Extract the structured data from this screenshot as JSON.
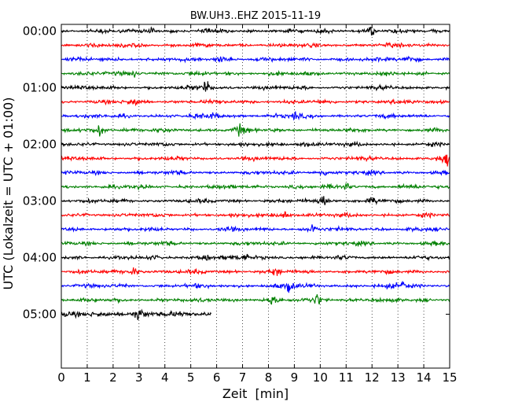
{
  "chart_data": {
    "type": "line",
    "title": "BW.UH3..EHZ 2015-11-19",
    "xlabel": "Zeit  [min]",
    "ylabel": "UTC (Lokalzeit = UTC + 01:00)",
    "xlim": [
      0,
      15
    ],
    "x_ticks": [
      "0",
      "1",
      "2",
      "3",
      "4",
      "5",
      "6",
      "7",
      "8",
      "9",
      "10",
      "11",
      "12",
      "13",
      "14",
      "15"
    ],
    "y_ticks": [
      "00:00",
      "01:00",
      "02:00",
      "03:00",
      "04:00",
      "05:00"
    ],
    "grid": "vertical dotted",
    "colors": [
      "#000000",
      "#ff0000",
      "#0000ff",
      "#008000"
    ],
    "interval_minutes": 15,
    "traces_per_hour": 4,
    "trace_count": 21,
    "last_trace_end_min": 5.8,
    "events": [
      {
        "trace": 0,
        "t": 11.95,
        "amp": 0.9
      },
      {
        "trace": 0,
        "t": 3.5,
        "amp": 0.5
      },
      {
        "trace": 1,
        "t": 3.0,
        "amp": 0.5
      },
      {
        "trace": 2,
        "t": 6.1,
        "amp": 0.7
      },
      {
        "trace": 2,
        "t": 13.4,
        "amp": 0.9
      },
      {
        "trace": 3,
        "t": 2.8,
        "amp": 0.5
      },
      {
        "trace": 4,
        "t": 5.6,
        "amp": 1.0
      },
      {
        "trace": 5,
        "t": 2.8,
        "amp": 0.6
      },
      {
        "trace": 6,
        "t": 5.9,
        "amp": 0.6
      },
      {
        "trace": 6,
        "t": 9.0,
        "amp": 0.5
      },
      {
        "trace": 7,
        "t": 1.5,
        "amp": 0.9
      },
      {
        "trace": 7,
        "t": 6.9,
        "amp": 0.9
      },
      {
        "trace": 8,
        "t": 9.4,
        "amp": 0.4
      },
      {
        "trace": 9,
        "t": 14.9,
        "amp": 0.8
      },
      {
        "trace": 10,
        "t": 10.1,
        "amp": 0.6
      },
      {
        "trace": 11,
        "t": 11.0,
        "amp": 0.6
      },
      {
        "trace": 12,
        "t": 10.15,
        "amp": 1.0
      },
      {
        "trace": 12,
        "t": 12.0,
        "amp": 0.6
      },
      {
        "trace": 13,
        "t": 8.6,
        "amp": 0.6
      },
      {
        "trace": 14,
        "t": 9.7,
        "amp": 0.7
      },
      {
        "trace": 16,
        "t": 5.6,
        "amp": 0.8
      },
      {
        "trace": 16,
        "t": 7.1,
        "amp": 0.6
      },
      {
        "trace": 17,
        "t": 2.8,
        "amp": 0.7
      },
      {
        "trace": 17,
        "t": 8.3,
        "amp": 0.6
      },
      {
        "trace": 18,
        "t": 8.8,
        "amp": 1.0
      },
      {
        "trace": 18,
        "t": 13.2,
        "amp": 0.9
      },
      {
        "trace": 19,
        "t": 9.9,
        "amp": 1.0
      },
      {
        "trace": 19,
        "t": 8.1,
        "amp": 0.6
      },
      {
        "trace": 20,
        "t": 3.0,
        "amp": 1.0
      }
    ]
  }
}
